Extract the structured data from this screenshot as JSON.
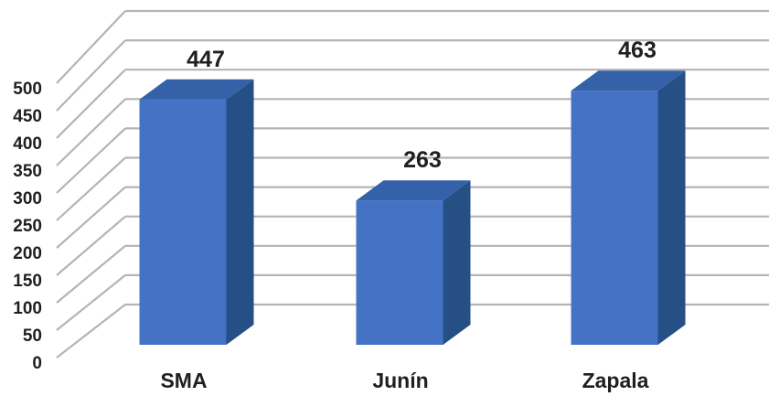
{
  "chart_data": {
    "type": "bar",
    "three_d": true,
    "categories": [
      "SMA",
      "Junín",
      "Zapala"
    ],
    "values": [
      447,
      263,
      463
    ],
    "data_labels": [
      "447",
      "263",
      "463"
    ],
    "ylim": [
      0,
      500
    ],
    "yticks": [
      "0",
      "50",
      "100",
      "150",
      "200",
      "250",
      "300",
      "350",
      "400",
      "450",
      "500"
    ],
    "grid": true,
    "legend": "none",
    "colors": {
      "front": "#4472c4",
      "side": "#264f86",
      "top": "#3461a8",
      "grid": "#b4b4b4"
    }
  }
}
